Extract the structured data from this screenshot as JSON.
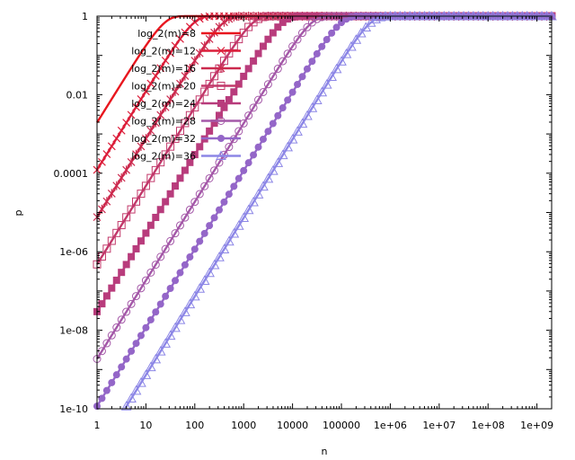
{
  "chart_data": {
    "type": "line",
    "xlabel": "n",
    "ylabel": "p",
    "x_scale": "log",
    "y_scale": "log",
    "xlim": [
      1,
      2000000000
    ],
    "ylim": [
      1e-10,
      1
    ],
    "grid": false,
    "legend_position": "top-left",
    "x_ticks": [
      {
        "value": 1,
        "label": "1"
      },
      {
        "value": 10,
        "label": "10"
      },
      {
        "value": 100,
        "label": "100"
      },
      {
        "value": 1000,
        "label": "1000"
      },
      {
        "value": 10000,
        "label": "10000"
      },
      {
        "value": 100000,
        "label": "100000"
      },
      {
        "value": 1000000,
        "label": "1e+06"
      },
      {
        "value": 10000000,
        "label": "1e+07"
      },
      {
        "value": 100000000,
        "label": "1e+08"
      },
      {
        "value": 1000000000,
        "label": "1e+09"
      }
    ],
    "y_ticks": [
      {
        "value": 1,
        "label": "1"
      },
      {
        "value": 0.01,
        "label": "0.01"
      },
      {
        "value": 0.0001,
        "label": "0.0001"
      },
      {
        "value": 1e-06,
        "label": "1e-06"
      },
      {
        "value": 1e-08,
        "label": "1e-08"
      },
      {
        "value": 1e-10,
        "label": "1e-10"
      }
    ],
    "series": [
      {
        "name": "log_2(m)=8",
        "log2m": 8,
        "color": "#e8161e",
        "marker": "none"
      },
      {
        "name": "log_2(m)=12",
        "log2m": 12,
        "color": "#dc1e3a",
        "marker": "x"
      },
      {
        "name": "log_2(m)=16",
        "log2m": 16,
        "color": "#cc2a4e",
        "marker": "star"
      },
      {
        "name": "log_2(m)=20",
        "log2m": 20,
        "color": "#c2386a",
        "marker": "square-open"
      },
      {
        "name": "log_2(m)=24",
        "log2m": 24,
        "color": "#b83c7c",
        "marker": "square-filled"
      },
      {
        "name": "log_2(m)=28",
        "log2m": 28,
        "color": "#a458a8",
        "marker": "circle-open"
      },
      {
        "name": "log_2(m)=32",
        "log2m": 32,
        "color": "#9466c8",
        "marker": "circle-filled"
      },
      {
        "name": "log_2(m)=36",
        "log2m": 36,
        "color": "#8c86e6",
        "marker": "triangle-open"
      }
    ]
  }
}
